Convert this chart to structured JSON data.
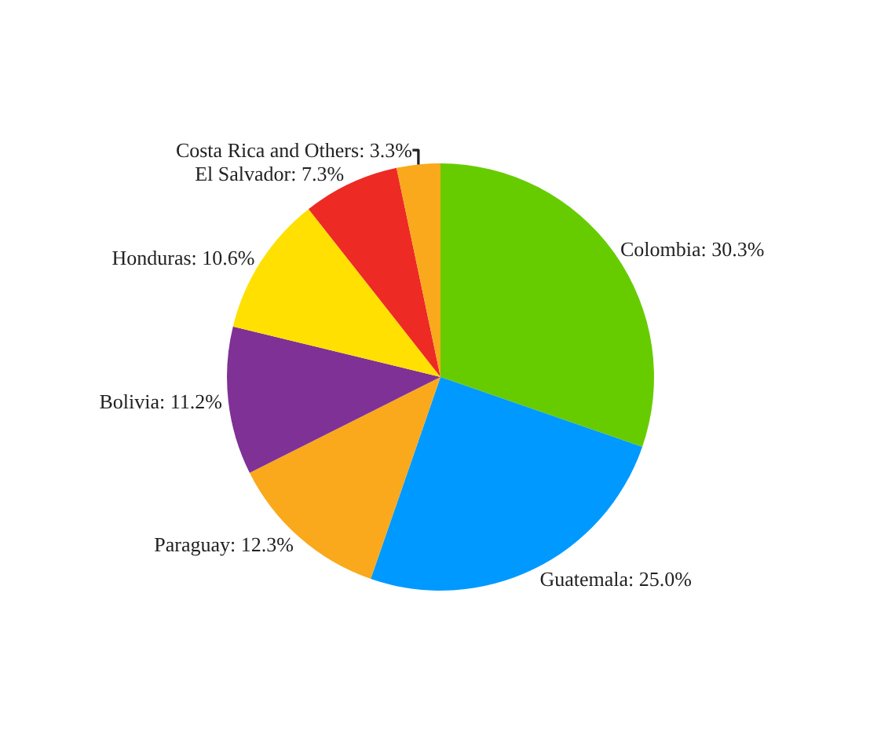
{
  "chart_data": {
    "type": "pie",
    "categories": [
      "Colombia",
      "Guatemala",
      "Paraguay",
      "Bolivia",
      "Honduras",
      "El Salvador",
      "Costa Rica and Others"
    ],
    "values": [
      30.3,
      25.0,
      12.3,
      11.2,
      10.6,
      7.3,
      3.3
    ],
    "value_labels": [
      "30.3%",
      "25.0%",
      "12.3%",
      "11.2%",
      "10.6%",
      "7.3%",
      "3.3%"
    ],
    "colors": [
      "#66cc00",
      "#0099ff",
      "#f9a91b",
      "#7f3196",
      "#ffe000",
      "#ee2a24",
      "#f9a91b"
    ],
    "legend": false
  }
}
